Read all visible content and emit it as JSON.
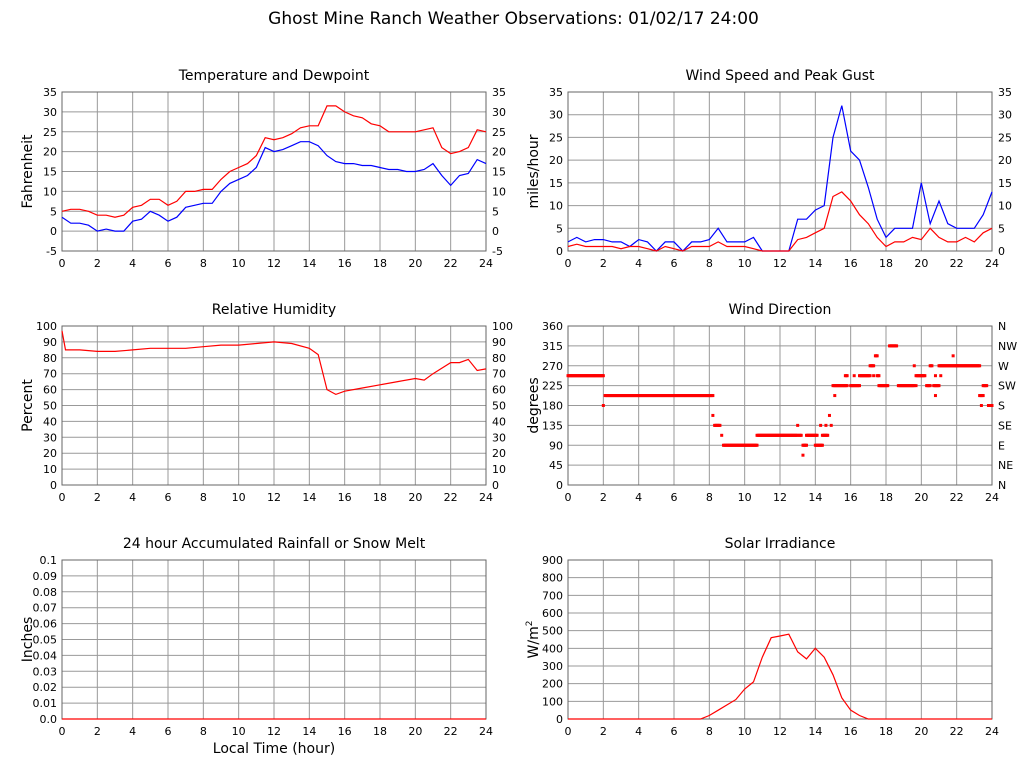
{
  "title": "Ghost Mine Ranch Weather Observations: 01/02/17 24:00",
  "chart_data": [
    {
      "type": "line",
      "title": "Temperature and Dewpoint",
      "ylabel": "Fahrenheit",
      "xlabel": "",
      "xlim": [
        0,
        24
      ],
      "ylim": [
        -5,
        35
      ],
      "xticks": [
        0,
        2,
        4,
        6,
        8,
        10,
        12,
        14,
        16,
        18,
        20,
        22,
        24
      ],
      "yticks": [
        -5,
        0,
        5,
        10,
        15,
        20,
        25,
        30,
        35
      ],
      "right_ticks": [
        "-5",
        "0",
        "5",
        "10",
        "15",
        "20",
        "25",
        "30",
        "35"
      ],
      "grid": true,
      "series": [
        {
          "color": "#ff0000",
          "x": [
            0,
            0.5,
            1,
            1.5,
            2,
            2.5,
            3,
            3.5,
            4,
            4.5,
            5,
            5.5,
            6,
            6.5,
            7,
            7.5,
            8,
            8.5,
            9,
            9.5,
            10,
            10.5,
            11,
            11.5,
            12,
            12.5,
            13,
            13.5,
            14,
            14.5,
            15,
            15.5,
            16,
            16.5,
            17,
            17.5,
            18,
            18.5,
            19,
            19.5,
            20,
            20.5,
            21,
            21.5,
            22,
            22.5,
            23,
            23.5,
            24
          ],
          "y": [
            5,
            5.5,
            5.5,
            5,
            4,
            4,
            3.5,
            4,
            6,
            6.5,
            8,
            8,
            6.5,
            7.5,
            10,
            10,
            10.5,
            10.5,
            13,
            15,
            16,
            17,
            19,
            23.5,
            23,
            23.5,
            24.5,
            26,
            26.5,
            26.5,
            31.5,
            31.5,
            30,
            29,
            28.5,
            27,
            26.5,
            25,
            25,
            25,
            25,
            25.5,
            26,
            21,
            19.5,
            20,
            21,
            25.5,
            25
          ]
        },
        {
          "color": "#0000ff",
          "x": [
            0,
            0.5,
            1,
            1.5,
            2,
            2.5,
            3,
            3.5,
            4,
            4.5,
            5,
            5.5,
            6,
            6.5,
            7,
            7.5,
            8,
            8.5,
            9,
            9.5,
            10,
            10.5,
            11,
            11.5,
            12,
            12.5,
            13,
            13.5,
            14,
            14.5,
            15,
            15.5,
            16,
            16.5,
            17,
            17.5,
            18,
            18.5,
            19,
            19.5,
            20,
            20.5,
            21,
            21.5,
            22,
            22.5,
            23,
            23.5,
            24
          ],
          "y": [
            3.5,
            2,
            2,
            1.5,
            0,
            0.5,
            0,
            0,
            2.5,
            3,
            5,
            4,
            2.5,
            3.5,
            6,
            6.5,
            7,
            7,
            10,
            12,
            13,
            14,
            16,
            21,
            20,
            20.5,
            21.5,
            22.5,
            22.5,
            21.5,
            19,
            17.5,
            17,
            17,
            16.5,
            16.5,
            16,
            15.5,
            15.5,
            15,
            15,
            15.5,
            17,
            14,
            11.5,
            14,
            14.5,
            18,
            17
          ]
        }
      ]
    },
    {
      "type": "line",
      "title": "Wind Speed and Peak Gust",
      "ylabel": "miles/hour",
      "xlabel": "",
      "xlim": [
        0,
        24
      ],
      "ylim": [
        0,
        35
      ],
      "xticks": [
        0,
        2,
        4,
        6,
        8,
        10,
        12,
        14,
        16,
        18,
        20,
        22,
        24
      ],
      "yticks": [
        0,
        5,
        10,
        15,
        20,
        25,
        30,
        35
      ],
      "right_ticks": [
        "0",
        "5",
        "10",
        "15",
        "20",
        "25",
        "30",
        "35"
      ],
      "grid": true,
      "series": [
        {
          "color": "#0000ff",
          "x": [
            0,
            0.5,
            1,
            1.5,
            2,
            2.5,
            3,
            3.5,
            4,
            4.5,
            5,
            5.5,
            6,
            6.5,
            7,
            7.5,
            8,
            8.5,
            9,
            9.5,
            10,
            10.5,
            11,
            11.5,
            12,
            12.5,
            13,
            13.5,
            14,
            14.5,
            15,
            15.5,
            16,
            16.5,
            17,
            17.5,
            18,
            18.5,
            19,
            19.5,
            20,
            20.5,
            21,
            21.5,
            22,
            22.5,
            23,
            23.5,
            24
          ],
          "y": [
            2,
            3,
            2,
            2.5,
            2.5,
            2,
            2,
            1,
            2.5,
            2,
            0,
            2,
            2,
            0,
            2,
            2,
            2.5,
            5,
            2,
            2,
            2,
            3,
            0,
            0,
            0,
            0,
            7,
            7,
            9,
            10,
            25,
            32,
            22,
            20,
            14,
            7,
            3,
            5,
            5,
            5,
            15,
            6,
            11,
            6,
            5,
            5,
            5,
            8,
            13
          ]
        },
        {
          "color": "#ff0000",
          "x": [
            0,
            0.5,
            1,
            1.5,
            2,
            2.5,
            3,
            3.5,
            4,
            4.5,
            5,
            5.5,
            6,
            6.5,
            7,
            7.5,
            8,
            8.5,
            9,
            9.5,
            10,
            10.5,
            11,
            11.5,
            12,
            12.5,
            13,
            13.5,
            14,
            14.5,
            15,
            15.5,
            16,
            16.5,
            17,
            17.5,
            18,
            18.5,
            19,
            19.5,
            20,
            20.5,
            21,
            21.5,
            22,
            22.5,
            23,
            23.5,
            24
          ],
          "y": [
            1,
            1.5,
            1,
            1,
            1,
            1,
            0.5,
            1,
            1,
            0.5,
            0,
            1,
            0.5,
            0,
            1,
            1,
            1,
            2,
            1,
            1,
            1,
            0.5,
            0,
            0,
            0,
            0,
            2.5,
            3,
            4,
            5,
            12,
            13,
            11,
            8,
            6,
            3,
            1,
            2,
            2,
            3,
            2.5,
            5,
            3,
            2,
            2,
            3,
            2,
            4,
            5
          ]
        }
      ]
    },
    {
      "type": "line",
      "title": "Relative Humidity",
      "ylabel": "Percent",
      "xlabel": "",
      "xlim": [
        0,
        24
      ],
      "ylim": [
        0,
        100
      ],
      "xticks": [
        0,
        2,
        4,
        6,
        8,
        10,
        12,
        14,
        16,
        18,
        20,
        22,
        24
      ],
      "yticks": [
        0,
        10,
        20,
        30,
        40,
        50,
        60,
        70,
        80,
        90,
        100
      ],
      "right_ticks": [
        "0",
        "10",
        "20",
        "30",
        "40",
        "50",
        "60",
        "70",
        "80",
        "90",
        "100"
      ],
      "grid": true,
      "series": [
        {
          "color": "#ff0000",
          "x": [
            0,
            0.2,
            1,
            2,
            3,
            4,
            5,
            6,
            7,
            8,
            9,
            10,
            11,
            12,
            13,
            14,
            14.5,
            15,
            15.5,
            16,
            17,
            18,
            19,
            20,
            20.5,
            21,
            22,
            22.5,
            23,
            23.5,
            24
          ],
          "y": [
            97,
            85,
            85,
            84,
            84,
            85,
            86,
            86,
            86,
            87,
            88,
            88,
            89,
            90,
            89,
            86,
            82,
            60,
            57,
            59,
            61,
            63,
            65,
            67,
            66,
            70,
            77,
            77,
            79,
            72,
            73
          ]
        }
      ]
    },
    {
      "type": "scatter",
      "title": "Wind Direction",
      "ylabel": "degrees",
      "xlabel": "",
      "xlim": [
        0,
        24
      ],
      "ylim": [
        0,
        360
      ],
      "xticks": [
        0,
        2,
        4,
        6,
        8,
        10,
        12,
        14,
        16,
        18,
        20,
        22,
        24
      ],
      "yticks": [
        0,
        45,
        90,
        135,
        180,
        225,
        270,
        315,
        360
      ],
      "right_ticks": [
        "N",
        "NE",
        "E",
        "SE",
        "S",
        "SW",
        "W",
        "NW",
        "N"
      ],
      "grid": true,
      "color": "#ff0000",
      "runs": [
        [
          0,
          2,
          247.5
        ],
        [
          2,
          2,
          180
        ],
        [
          2.1,
          8.2,
          202.5
        ],
        [
          8.2,
          8.2,
          157.5
        ],
        [
          8.3,
          8.6,
          135
        ],
        [
          8.7,
          8.7,
          112.5
        ],
        [
          8.8,
          10.7,
          90
        ],
        [
          10.7,
          13,
          112.5
        ],
        [
          13,
          13,
          135
        ],
        [
          13.1,
          13.2,
          112.5
        ],
        [
          13.3,
          13.3,
          67.5
        ],
        [
          13.3,
          13.5,
          90
        ],
        [
          13.5,
          14.1,
          112.5
        ],
        [
          14,
          14.4,
          90
        ],
        [
          14.3,
          14.3,
          135
        ],
        [
          14.4,
          14.7,
          112.5
        ],
        [
          14.6,
          14.6,
          135
        ],
        [
          14.8,
          14.8,
          157.5
        ],
        [
          14.9,
          14.9,
          135
        ],
        [
          15,
          15.8,
          225
        ],
        [
          15.1,
          15.1,
          202.5
        ],
        [
          15.7,
          15.8,
          247.5
        ],
        [
          16,
          16.5,
          225
        ],
        [
          16.2,
          16.2,
          247.5
        ],
        [
          16.5,
          17.1,
          247.5
        ],
        [
          17.1,
          17.3,
          270
        ],
        [
          17.3,
          17.3,
          247.5
        ],
        [
          17.4,
          17.5,
          292.5
        ],
        [
          17.5,
          17.6,
          247.5
        ],
        [
          17.6,
          18.1,
          225
        ],
        [
          18.2,
          18.6,
          315
        ],
        [
          18.7,
          19.6,
          225
        ],
        [
          19.6,
          19.6,
          270
        ],
        [
          19.7,
          20.2,
          247.5
        ],
        [
          19.7,
          19.7,
          225
        ],
        [
          20.3,
          20.5,
          225
        ],
        [
          20.5,
          20.6,
          270
        ],
        [
          20.8,
          20.8,
          247.5
        ],
        [
          20.8,
          20.8,
          202.5
        ],
        [
          20.7,
          21,
          225
        ],
        [
          21.1,
          21.1,
          247.5
        ],
        [
          21,
          22,
          270
        ],
        [
          21.8,
          21.8,
          292.5
        ],
        [
          22,
          23.3,
          270
        ],
        [
          23.3,
          23.5,
          202.5
        ],
        [
          23.4,
          23.4,
          180
        ],
        [
          23.5,
          23.7,
          225
        ],
        [
          23.8,
          24,
          180
        ]
      ]
    },
    {
      "type": "line",
      "title": "24 hour Accumulated Rainfall or Snow Melt",
      "ylabel": "Inches",
      "xlabel": "Local Time (hour)",
      "xlim": [
        0,
        24
      ],
      "ylim": [
        0,
        0.1
      ],
      "xticks": [
        0,
        2,
        4,
        6,
        8,
        10,
        12,
        14,
        16,
        18,
        20,
        22,
        24
      ],
      "yticks": [
        "0.0",
        "0.01",
        "0.02",
        "0.03",
        "0.04",
        "0.05",
        "0.06",
        "0.07",
        "0.08",
        "0.09",
        "0.1"
      ],
      "right_ticks": [],
      "grid": true,
      "series": [
        {
          "color": "#ff0000",
          "x": [
            0,
            24
          ],
          "y": [
            0,
            0
          ]
        }
      ]
    },
    {
      "type": "line",
      "title": "Solar Irradiance",
      "ylabel": "W/m",
      "ylabel_sup": "2",
      "xlabel": "",
      "xlim": [
        0,
        24
      ],
      "ylim": [
        0,
        900
      ],
      "xticks": [
        0,
        2,
        4,
        6,
        8,
        10,
        12,
        14,
        16,
        18,
        20,
        22,
        24
      ],
      "yticks": [
        0,
        100,
        200,
        300,
        400,
        500,
        600,
        700,
        800,
        900
      ],
      "right_ticks": [],
      "grid": true,
      "series": [
        {
          "color": "#ff0000",
          "x": [
            0,
            7.5,
            8,
            8.5,
            9,
            9.5,
            10,
            10.5,
            11,
            11.5,
            12,
            12.5,
            13,
            13.5,
            14,
            14.5,
            15,
            15.5,
            16,
            16.5,
            17,
            24
          ],
          "y": [
            0,
            0,
            20,
            50,
            80,
            110,
            170,
            210,
            350,
            460,
            470,
            480,
            380,
            340,
            400,
            350,
            250,
            120,
            50,
            20,
            0,
            0
          ]
        }
      ]
    }
  ]
}
